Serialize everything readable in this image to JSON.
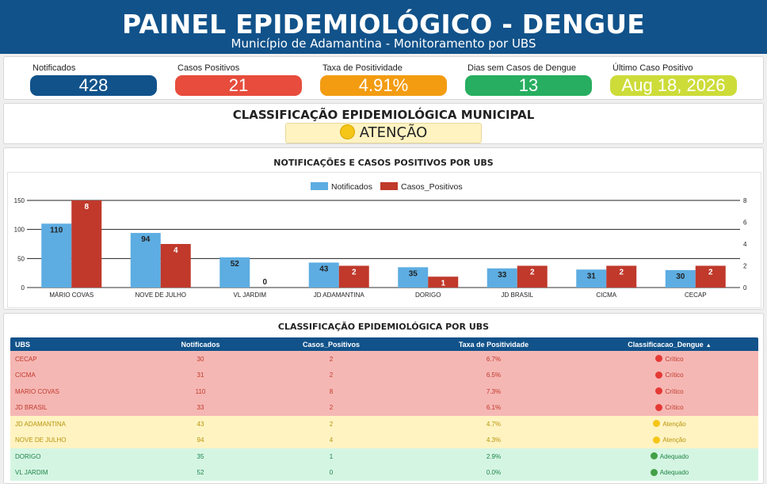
{
  "header": {
    "title": "PAINEL EPIDEMIOLÓGICO - DENGUE",
    "subtitle": "Município de Adamantina - Monitoramento por UBS"
  },
  "kpis": [
    {
      "label": "Notificados",
      "value": "428",
      "color": "#11528a"
    },
    {
      "label": "Casos Positivos",
      "value": "21",
      "color": "#e74c3c"
    },
    {
      "label": "Taxa de Positividade",
      "value": "4.91%",
      "color": "#f39c12"
    },
    {
      "label": "Dias sem Casos de Dengue",
      "value": "13",
      "color": "#27ae60"
    },
    {
      "label": "Último Caso Positivo",
      "value": "Aug 18, 2026",
      "color": "#cddc39"
    }
  ],
  "classification": {
    "title": "CLASSIFICAÇÃO EPIDEMIOLÓGICA MUNICIPAL",
    "status": "ATENÇÃO"
  },
  "chart_title": "NOTIFICAÇÕES E CASOS POSITIVOS POR UBS",
  "chart_data": {
    "type": "bar",
    "categories": [
      "MÁRIO COVAS",
      "NOVE DE JULHO",
      "VL JARDIM",
      "JD ADAMANTINA",
      "DORIGO",
      "JD BRASIL",
      "CICMA",
      "CECAP"
    ],
    "series": [
      {
        "name": "Notificados",
        "values": [
          110,
          94,
          52,
          43,
          35,
          33,
          31,
          30
        ],
        "color": "#5dade2",
        "axis": "left"
      },
      {
        "name": "Casos_Positivos",
        "values": [
          8,
          4,
          0,
          2,
          1,
          2,
          2,
          2
        ],
        "color": "#c0392b",
        "axis": "right"
      }
    ],
    "ylim_left": [
      0,
      150
    ],
    "yticks_left": [
      0,
      50,
      100,
      150
    ],
    "ylim_right": [
      0,
      8
    ],
    "yticks_right": [
      0,
      2,
      4,
      6,
      8
    ],
    "legend": "top-center",
    "grid": true
  },
  "table": {
    "title": "CLASSIFICAÇÃO EPIDEMIOLÓGICA POR UBS",
    "columns": [
      "UBS",
      "Notificados",
      "Casos_Positivos",
      "Taxa de Positividade",
      "Classificacao_Dengue"
    ],
    "sort_indicator": "▲",
    "rows": [
      {
        "ubs": "CECAP",
        "notificados": "30",
        "positivos": "2",
        "taxa": "6.7%",
        "classe": "Crítico",
        "status": "critico"
      },
      {
        "ubs": "CICMA",
        "notificados": "31",
        "positivos": "2",
        "taxa": "6.5%",
        "classe": "Crítico",
        "status": "critico"
      },
      {
        "ubs": "MARIO COVAS",
        "notificados": "110",
        "positivos": "8",
        "taxa": "7.3%",
        "classe": "Crítico",
        "status": "critico"
      },
      {
        "ubs": "JD BRASIL",
        "notificados": "33",
        "positivos": "2",
        "taxa": "6.1%",
        "classe": "Crítico",
        "status": "critico"
      },
      {
        "ubs": "JD ADAMANTINA",
        "notificados": "43",
        "positivos": "2",
        "taxa": "4.7%",
        "classe": "Atenção",
        "status": "atencao"
      },
      {
        "ubs": "NOVE DE JULHO",
        "notificados": "94",
        "positivos": "4",
        "taxa": "4.3%",
        "classe": "Atenção",
        "status": "atencao"
      },
      {
        "ubs": "DORIGO",
        "notificados": "35",
        "positivos": "1",
        "taxa": "2.9%",
        "classe": "Adequado",
        "status": "adequado"
      },
      {
        "ubs": "VL JARDIM",
        "notificados": "52",
        "positivos": "0",
        "taxa": "0.0%",
        "classe": "Adequado",
        "status": "adequado"
      }
    ]
  }
}
